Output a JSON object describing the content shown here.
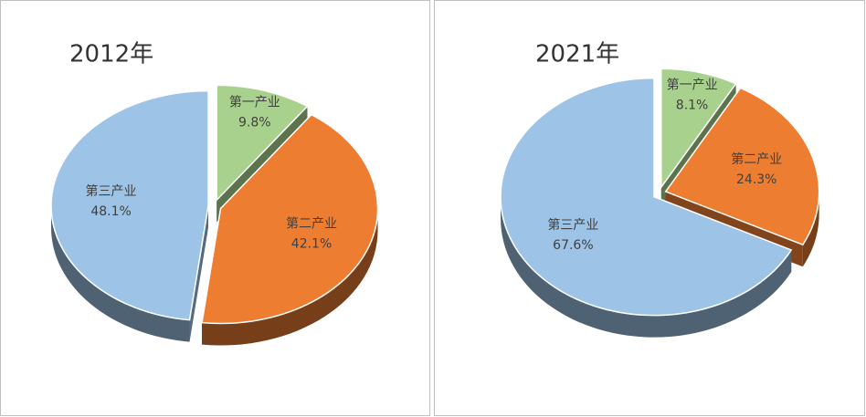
{
  "chart_data": [
    {
      "type": "pie",
      "title": "2012年",
      "categories": [
        "第一产业",
        "第二产业",
        "第三产业"
      ],
      "values": [
        9.8,
        42.1,
        48.1
      ],
      "value_labels": [
        "9.8%",
        "42.1%",
        "48.1%"
      ],
      "colors": [
        "#a9d18e",
        "#ed7d31",
        "#9dc3e6"
      ]
    },
    {
      "type": "pie",
      "title": "2021年",
      "categories": [
        "第一产业",
        "第二产业",
        "第三产业"
      ],
      "values": [
        8.1,
        24.3,
        67.6
      ],
      "value_labels": [
        "8.1%",
        "24.3%",
        "67.6%"
      ],
      "colors": [
        "#a9d18e",
        "#ed7d31",
        "#9dc3e6"
      ]
    }
  ]
}
